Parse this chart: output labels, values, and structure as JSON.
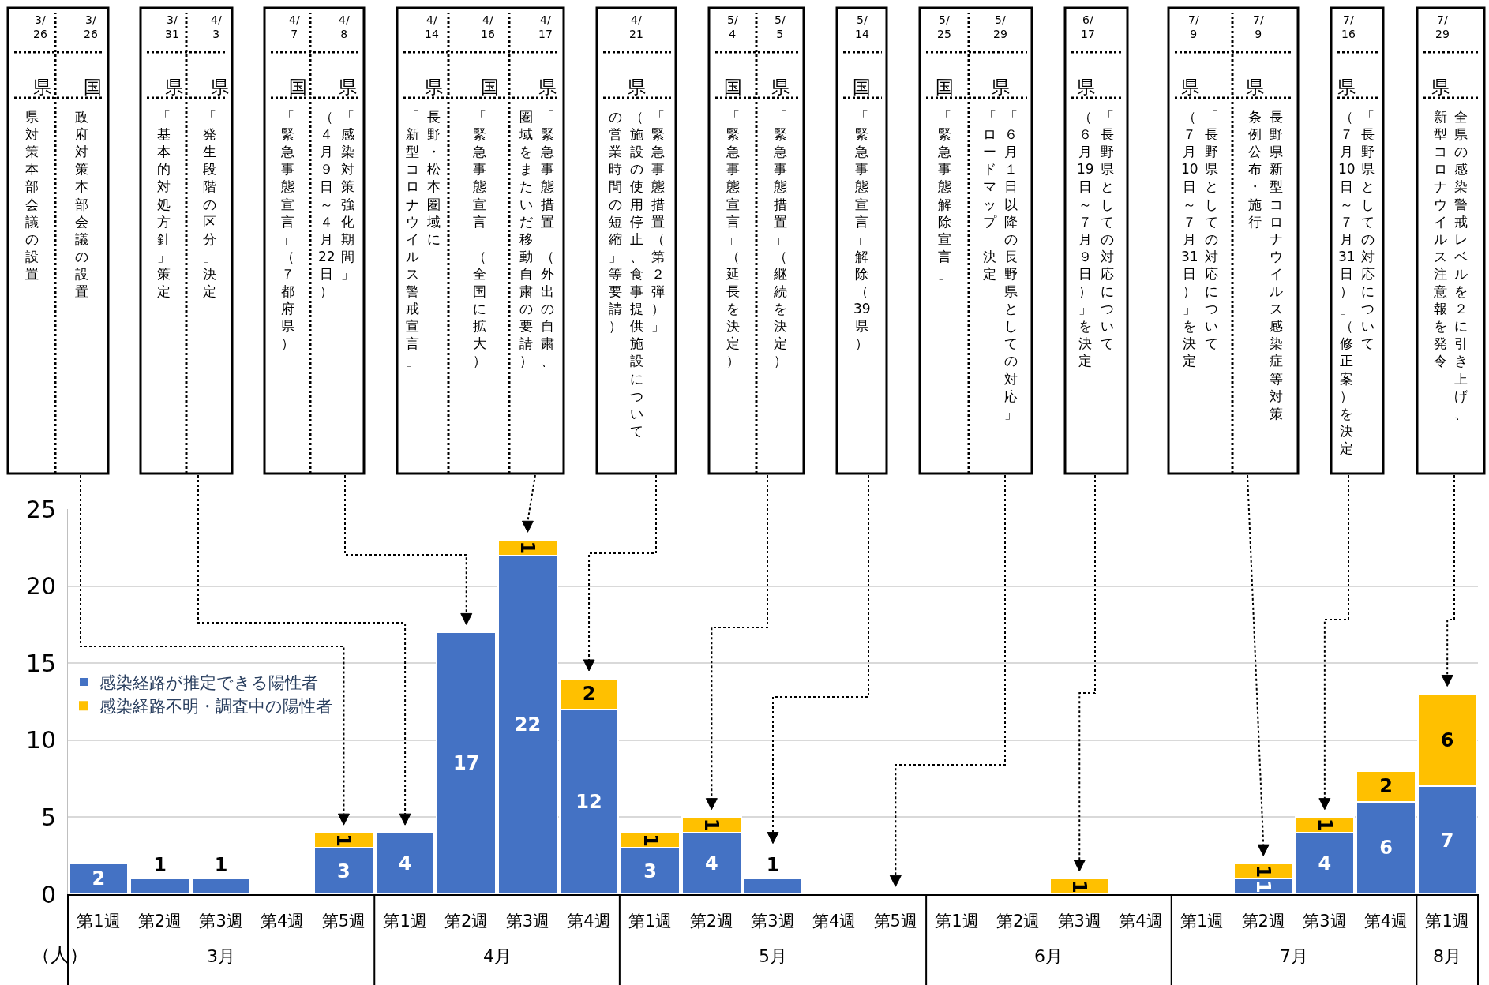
{
  "chart_data": {
    "type": "bar",
    "stacked": true,
    "ylabel": "（人）",
    "categories": [
      "第1週",
      "第2週",
      "第3週",
      "第4週",
      "第5週",
      "第1週",
      "第2週",
      "第3週",
      "第4週",
      "第1週",
      "第2週",
      "第3週",
      "第4週",
      "第5週",
      "第1週",
      "第2週",
      "第3週",
      "第4週",
      "第1週",
      "第2週",
      "第3週",
      "第4週",
      "第1週"
    ],
    "series": [
      {
        "name": "感染経路が推定できる陽性者",
        "color": "#4472c4",
        "values": [
          2,
          1,
          1,
          0,
          3,
          4,
          17,
          22,
          12,
          3,
          4,
          1,
          0,
          0,
          0,
          0,
          0,
          0,
          0,
          1,
          4,
          6,
          7
        ],
        "value_labels": [
          "2",
          "1",
          "1",
          null,
          "3",
          "4",
          "17",
          "22",
          "12",
          "3",
          "4",
          "1",
          null,
          null,
          null,
          null,
          null,
          null,
          null,
          "1",
          "4",
          "6",
          "7"
        ]
      },
      {
        "name": "感染経路不明・調査中の陽性者",
        "color": "#ffc000",
        "values": [
          0,
          0,
          0,
          0,
          1,
          0,
          0,
          1,
          2,
          1,
          1,
          0,
          0,
          0,
          0,
          0,
          1,
          0,
          0,
          1,
          1,
          2,
          6
        ],
        "value_labels": [
          null,
          null,
          null,
          null,
          "1",
          null,
          null,
          "1",
          "2",
          "1",
          "1",
          null,
          null,
          null,
          null,
          null,
          "1",
          null,
          null,
          "1",
          "1",
          "2",
          "6"
        ]
      }
    ],
    "ylim": [
      0,
      25
    ],
    "yticks": [
      0,
      5,
      10,
      15,
      20,
      25
    ],
    "grid": "y",
    "legend": "left",
    "annotations": [
      "3月",
      "4月",
      "5月",
      "6月",
      "7月",
      "8月",
      "3/26",
      "県",
      "県対策本部会議の設置",
      "3/26",
      "国",
      "政府対策本部会議の設置",
      "3/31",
      "県",
      "「基本的対処方針」策定",
      "4/3",
      "県",
      "「発生段階の区分」決定",
      "4/7",
      "国",
      "「緊急事態宣言」（７都府県）",
      "4/8",
      "県",
      "「感染対策強化期間」",
      "（４月９日～４月22日）",
      "4/14",
      "県",
      "長野・松本圏域に",
      "「新型コロナウイルス警戒宣言」",
      "4/16",
      "国",
      "「緊急事態宣言」（全国に拡大）",
      "4/17",
      "県",
      "「緊急事態措置」（外出の自粛、",
      "圏域をまたいだ移動自粛の要請）",
      "4/21",
      "県",
      "「緊急事態措置（第２弾）」",
      "（施設の使用停止、食事提供施設について",
      "の営業時間の短縮」等要請）",
      "5/4",
      "国",
      "「緊急事態宣言」（延長を決定）",
      "5/5",
      "県",
      "「緊急事態措置」（継続を決定）",
      "5/14",
      "国",
      "「緊急事態宣言」解除（39県）",
      "5/25",
      "国",
      "「緊急事態解除宣言」",
      "5/29",
      "県",
      "「６月１日以降の長野県としての対応」",
      "「ロードマップ」決定",
      "6/17",
      "県",
      "「長野県としての対応について",
      "（６月19日～７月９日）」を決定",
      "7/9",
      "県",
      "「長野県としての対応について",
      "（７月10日～７月31日）」を決定",
      "7/9",
      "県",
      "長野県新型コロナウイルス感染症等対策",
      "条例公布・施行",
      "7/16",
      "県",
      "「長野県としての対応について",
      "（７月10日～７月31日）」（修正案）を決定",
      "7/29",
      "県",
      "全県の感染警戒レベルを２に引き上げ、",
      "新型コロナウイルス注意報を発令"
    ]
  }
}
